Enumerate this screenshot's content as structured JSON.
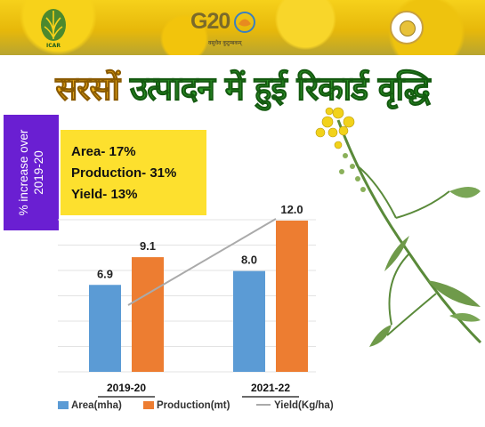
{
  "header": {
    "icar_text": "ICAR",
    "g20_text": "G20",
    "g20_tagline": "वसुधैव कुटुम्बकम्"
  },
  "title": {
    "part1": "सरसों ",
    "part2": "उत्पादन में हुई रिकार्ड वृद्धि"
  },
  "side_label": "% increase over 2019-20",
  "stats": [
    "Area- 17%",
    "Production- 31%",
    "Yield- 13%"
  ],
  "colors": {
    "area": "#5b9bd5",
    "production": "#ed7d31",
    "yield": "#aaaaaa",
    "side_bg": "#6a1fd2",
    "stats_bg": "#fde02e"
  },
  "chart_data": {
    "type": "bar",
    "categories": [
      "2019-20",
      "2021-22"
    ],
    "series": [
      {
        "name": "Area(mha)",
        "values": [
          6.9,
          8.0
        ]
      },
      {
        "name": "Production(mt)",
        "values": [
          9.1,
          12.0
        ]
      }
    ],
    "line_series": {
      "name": "Yield(Kg/ha)"
    },
    "data_labels": true,
    "grid": true,
    "ylim": [
      0,
      12
    ],
    "legend": "bottom"
  },
  "legend": {
    "area": "Area(mha)",
    "production": "Production(mt)",
    "yield": "Yield(Kg/ha)"
  }
}
